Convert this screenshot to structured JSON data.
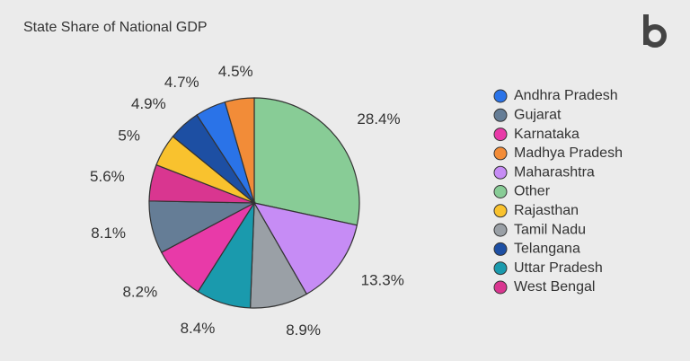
{
  "chart_data": {
    "type": "pie",
    "title": "State Share of National GDP",
    "categories": [
      "Other",
      "Maharashtra",
      "Tamil Nadu",
      "Uttar Pradesh",
      "Karnataka",
      "Gujarat",
      "West Bengal",
      "Rajasthan",
      "Telangana",
      "Andhra Pradesh",
      "Madhya Pradesh"
    ],
    "values": [
      28.4,
      13.3,
      8.9,
      8.4,
      8.2,
      8.1,
      5.6,
      5,
      4.9,
      4.7,
      4.5
    ],
    "value_labels": [
      "28.4%",
      "13.3%",
      "8.9%",
      "8.4%",
      "8.2%",
      "8.1%",
      "5.6%",
      "5%",
      "4.9%",
      "4.7%",
      "4.5%"
    ],
    "colors": [
      "#88cc96",
      "#c68cf5",
      "#9aa0a6",
      "#1a9aad",
      "#e83aa8",
      "#657d96",
      "#d93690",
      "#f9c22e",
      "#1d4fa3",
      "#2a73e8",
      "#f28c38"
    ],
    "legend": "right"
  }
}
